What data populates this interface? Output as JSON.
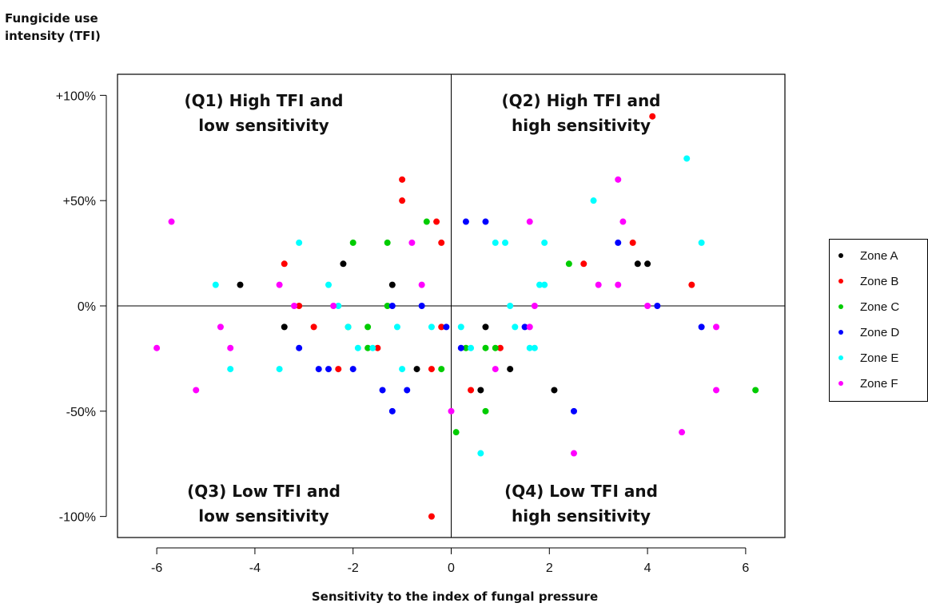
{
  "chart_data": {
    "type": "scatter",
    "ylabel_lines": [
      "Fungicide use",
      "intensity (TFI)"
    ],
    "xlabel": "Sensitivity to the index of fungal pressure",
    "xlim": [
      -6.8,
      6.8
    ],
    "ylim": [
      -110,
      110
    ],
    "x_ticks": [
      -6,
      -4,
      -2,
      0,
      2,
      4,
      6
    ],
    "x_tick_labels": [
      "-6",
      "-4",
      "-2",
      "0",
      "2",
      "4",
      "6"
    ],
    "y_ticks": [
      100,
      50,
      0,
      -50,
      -100
    ],
    "y_tick_labels": [
      "+100%",
      "+50%",
      "0%",
      "-50%",
      "-100%"
    ],
    "reference_lines": {
      "x": 0,
      "y": 0
    },
    "grid": false,
    "legend_position": "right",
    "quadrants": {
      "q1": {
        "line1": "(Q1) High TFI and",
        "line2": "low sensitivity"
      },
      "q2": {
        "line1": "(Q2) High TFI and",
        "line2": "high sensitivity"
      },
      "q3": {
        "line1": "(Q3) Low TFI and",
        "line2": "low sensitivity"
      },
      "q4": {
        "line1": "(Q4) Low TFI and",
        "line2": "high sensitivity"
      }
    },
    "series": [
      {
        "name": "Zone A",
        "color": "#000000",
        "points": [
          [
            -4.3,
            10
          ],
          [
            -3.4,
            -10
          ],
          [
            -2.2,
            20
          ],
          [
            -1.2,
            10
          ],
          [
            -0.7,
            -30
          ],
          [
            0.6,
            -40
          ],
          [
            0.7,
            -10
          ],
          [
            1.2,
            -30
          ],
          [
            2.1,
            -40
          ],
          [
            3.8,
            20
          ],
          [
            4.0,
            20
          ]
        ]
      },
      {
        "name": "Zone B",
        "color": "#ff0000",
        "points": [
          [
            -3.4,
            20
          ],
          [
            -3.1,
            0
          ],
          [
            -2.8,
            -10
          ],
          [
            -2.3,
            -30
          ],
          [
            -1.5,
            -20
          ],
          [
            -1.0,
            60
          ],
          [
            -1.0,
            50
          ],
          [
            -0.4,
            -30
          ],
          [
            -0.3,
            40
          ],
          [
            -0.2,
            30
          ],
          [
            -0.2,
            -10
          ],
          [
            -0.4,
            -100
          ],
          [
            0.4,
            -40
          ],
          [
            1.0,
            -20
          ],
          [
            2.7,
            20
          ],
          [
            3.7,
            30
          ],
          [
            4.1,
            90
          ],
          [
            4.9,
            10
          ]
        ]
      },
      {
        "name": "Zone C",
        "color": "#00cc00",
        "points": [
          [
            -2.1,
            -10
          ],
          [
            -2.0,
            30
          ],
          [
            -1.7,
            -10
          ],
          [
            -1.7,
            -20
          ],
          [
            -1.3,
            30
          ],
          [
            -1.3,
            0
          ],
          [
            -0.5,
            40
          ],
          [
            -0.2,
            -30
          ],
          [
            0.1,
            -60
          ],
          [
            0.3,
            -20
          ],
          [
            0.7,
            -20
          ],
          [
            0.7,
            -50
          ],
          [
            0.9,
            -20
          ],
          [
            2.4,
            20
          ],
          [
            6.2,
            -40
          ]
        ]
      },
      {
        "name": "Zone D",
        "color": "#0000ff",
        "points": [
          [
            -3.1,
            -20
          ],
          [
            -2.7,
            -30
          ],
          [
            -2.5,
            -30
          ],
          [
            -2.0,
            -30
          ],
          [
            -1.4,
            -40
          ],
          [
            -1.2,
            0
          ],
          [
            -1.2,
            -50
          ],
          [
            -0.9,
            -40
          ],
          [
            -0.6,
            0
          ],
          [
            -0.1,
            -10
          ],
          [
            0.2,
            -20
          ],
          [
            0.3,
            40
          ],
          [
            0.7,
            40
          ],
          [
            1.5,
            -10
          ],
          [
            2.5,
            -50
          ],
          [
            3.4,
            30
          ],
          [
            4.2,
            0
          ],
          [
            5.1,
            -10
          ]
        ]
      },
      {
        "name": "Zone E",
        "color": "#00ffff",
        "points": [
          [
            -4.8,
            10
          ],
          [
            -4.5,
            -30
          ],
          [
            -3.5,
            -30
          ],
          [
            -3.1,
            30
          ],
          [
            -2.5,
            10
          ],
          [
            -2.3,
            0
          ],
          [
            -2.1,
            -10
          ],
          [
            -1.9,
            -20
          ],
          [
            -1.6,
            -20
          ],
          [
            -1.1,
            -10
          ],
          [
            -1.0,
            -30
          ],
          [
            -0.4,
            -10
          ],
          [
            0.2,
            -10
          ],
          [
            0.4,
            -20
          ],
          [
            0.6,
            -70
          ],
          [
            0.9,
            30
          ],
          [
            1.1,
            30
          ],
          [
            1.2,
            0
          ],
          [
            1.3,
            -10
          ],
          [
            1.6,
            -20
          ],
          [
            1.7,
            -20
          ],
          [
            1.8,
            10
          ],
          [
            1.9,
            30
          ],
          [
            1.9,
            10
          ],
          [
            2.9,
            50
          ],
          [
            4.8,
            70
          ],
          [
            5.1,
            30
          ]
        ]
      },
      {
        "name": "Zone F",
        "color": "#ff00ff",
        "points": [
          [
            -6.0,
            -20
          ],
          [
            -5.7,
            40
          ],
          [
            -5.2,
            -40
          ],
          [
            -4.7,
            -10
          ],
          [
            -4.5,
            -20
          ],
          [
            -3.5,
            10
          ],
          [
            -3.2,
            0
          ],
          [
            -2.4,
            0
          ],
          [
            -0.8,
            30
          ],
          [
            -0.6,
            10
          ],
          [
            0.0,
            -50
          ],
          [
            0.9,
            -30
          ],
          [
            1.6,
            40
          ],
          [
            1.6,
            -10
          ],
          [
            1.7,
            0
          ],
          [
            2.5,
            -70
          ],
          [
            3.0,
            10
          ],
          [
            3.4,
            60
          ],
          [
            3.4,
            10
          ],
          [
            3.5,
            40
          ],
          [
            4.0,
            0
          ],
          [
            4.7,
            -60
          ],
          [
            5.4,
            -10
          ],
          [
            5.4,
            -40
          ]
        ]
      }
    ]
  }
}
